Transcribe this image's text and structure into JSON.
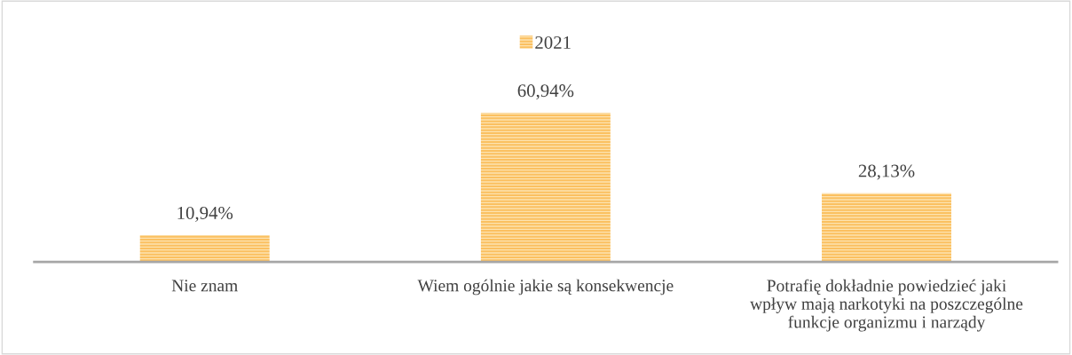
{
  "chart_data": {
    "type": "bar",
    "categories": [
      "Nie znam",
      "Wiem ogólnie jakie są konsekwencje",
      "Potrafię dokładnie powiedzieć jaki\nwpływ mają narkotyki na poszczególne\nfunkcje organizmu i narządy"
    ],
    "series": [
      {
        "name": "2021",
        "color": "#fbc060",
        "values": [
          10.94,
          60.94,
          28.13
        ],
        "value_labels": [
          "10,94%",
          "60,94%",
          "28,13%"
        ]
      }
    ],
    "legend": "top"
  }
}
